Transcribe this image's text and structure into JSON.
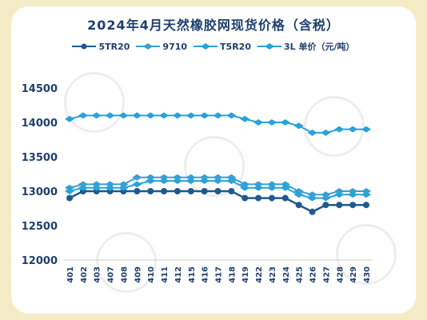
{
  "chart_data": {
    "type": "line",
    "title": "2024年4月天然橡胶网现货价格（含税）",
    "x": [
      "401",
      "402",
      "403",
      "407",
      "408",
      "409",
      "410",
      "411",
      "412",
      "415",
      "416",
      "417",
      "418",
      "419",
      "422",
      "423",
      "424",
      "425",
      "426",
      "427",
      "428",
      "429",
      "430"
    ],
    "ylim": [
      12000,
      14500
    ],
    "yticks": [
      12000,
      12500,
      13000,
      13500,
      14000,
      14500
    ],
    "grid": false,
    "legend_position": "top",
    "series": [
      {
        "name": "5TR20",
        "color": "#1e5a8e",
        "marker": "circle",
        "values": [
          12900,
          13000,
          13000,
          13000,
          13000,
          13000,
          13000,
          13000,
          13000,
          13000,
          13000,
          13000,
          13000,
          12900,
          12900,
          12900,
          12900,
          12800,
          12700,
          12800,
          12800,
          12800,
          12800
        ]
      },
      {
        "name": "9710",
        "color": "#3b9fd3",
        "marker": "diamond",
        "values": [
          13050,
          13100,
          13100,
          13100,
          13100,
          13200,
          13200,
          13200,
          13200,
          13200,
          13200,
          13200,
          13200,
          13100,
          13100,
          13100,
          13100,
          13000,
          12950,
          12950,
          13000,
          13000,
          13000
        ]
      },
      {
        "name": "T5R20",
        "color": "#29a3d8",
        "marker": "diamond",
        "values": [
          13000,
          13050,
          13050,
          13050,
          13050,
          13100,
          13150,
          13150,
          13150,
          13150,
          13150,
          13150,
          13150,
          13050,
          13050,
          13050,
          13050,
          12950,
          12900,
          12900,
          12950,
          12950,
          12950
        ]
      },
      {
        "name": "3L 单价（元/吨）",
        "color": "#2aa1d9",
        "marker": "diamond",
        "values": [
          14050,
          14100,
          14100,
          14100,
          14100,
          14100,
          14100,
          14100,
          14100,
          14100,
          14100,
          14100,
          14100,
          14050,
          14000,
          14000,
          14000,
          13950,
          13850,
          13850,
          13900,
          13900,
          13900
        ]
      }
    ]
  }
}
